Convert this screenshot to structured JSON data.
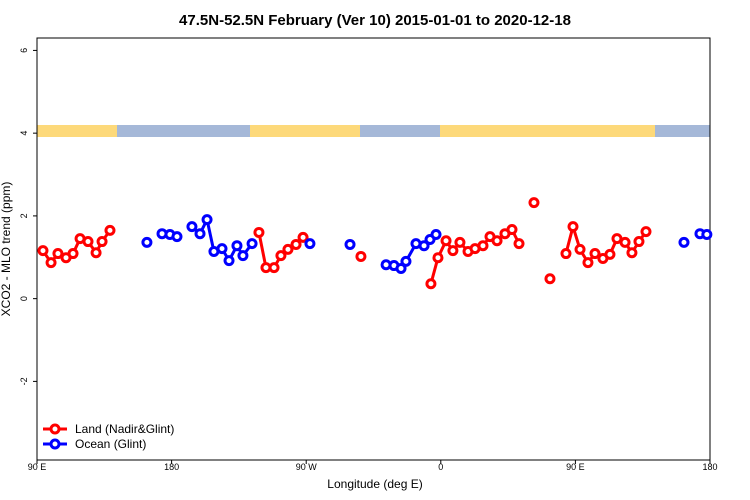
{
  "chart_data": {
    "type": "line",
    "title": "47.5N-52.5N February (Ver 10)   2015-01-01 to 2020-12-18",
    "x_label": "Longitude (deg E)",
    "y_label": "XCO2 - MLO trend (ppm)",
    "xlim": [
      90,
      540
    ],
    "xticks": [
      {
        "value": 90,
        "label": "90 E"
      },
      {
        "value": 180,
        "label": "180"
      },
      {
        "value": 270,
        "label": "90 W"
      },
      {
        "value": 360,
        "label": "0"
      },
      {
        "value": 450,
        "label": "90 E"
      },
      {
        "value": 540,
        "label": "180"
      }
    ],
    "ylim": [
      -3.9,
      6.3
    ],
    "yticks": [
      -2,
      0,
      2,
      4,
      6
    ],
    "legend": "bottom-left",
    "series": [
      {
        "name": "Land (Nadir&Glint)",
        "color": "#ff0000",
        "x": [
          94.0,
          99.4,
          104.0,
          109.4,
          114.1,
          118.8,
          124.1,
          129.5,
          133.5,
          138.8,
          null,
          238.4,
          243.1,
          248.5,
          253.1,
          257.8,
          263.2,
          267.9,
          null,
          306.6,
          null,
          353.4,
          358.1,
          363.5,
          368.1,
          372.8,
          378.2,
          382.9,
          388.2,
          392.9,
          397.6,
          402.9,
          407.6,
          412.3,
          null,
          422.3,
          null,
          433.0,
          null,
          443.7,
          448.4,
          453.1,
          458.4,
          463.1,
          468.4,
          473.1,
          477.8,
          483.2,
          487.8,
          492.5,
          497.2
        ],
        "values": [
          1.16,
          0.87,
          1.09,
          0.99,
          1.09,
          1.45,
          1.38,
          1.11,
          1.38,
          1.65,
          null,
          1.6,
          0.75,
          0.75,
          1.04,
          1.19,
          1.31,
          1.48,
          null,
          1.02,
          null,
          0.36,
          0.99,
          1.4,
          1.16,
          1.36,
          1.14,
          1.21,
          1.28,
          1.5,
          1.4,
          1.57,
          1.67,
          1.33,
          null,
          2.32,
          null,
          0.48,
          null,
          1.09,
          1.74,
          1.19,
          0.87,
          1.09,
          0.97,
          1.07,
          1.45,
          1.36,
          1.11,
          1.38,
          1.62
        ]
      },
      {
        "name": "Ocean (Glint)",
        "color": "#0000ff",
        "x": [
          163.5,
          null,
          173.6,
          178.9,
          183.6,
          null,
          193.6,
          199.0,
          203.7,
          208.3,
          213.7,
          218.4,
          223.7,
          227.7,
          233.8,
          null,
          272.5,
          null,
          299.3,
          null,
          323.4,
          328.7,
          333.4,
          336.7,
          343.4,
          348.8,
          352.8,
          356.8,
          null,
          522.6,
          null,
          533.3,
          537.9
        ],
        "values": [
          1.36,
          null,
          1.57,
          1.55,
          1.5,
          null,
          1.74,
          1.57,
          1.91,
          1.14,
          1.21,
          0.92,
          1.28,
          1.04,
          1.33,
          null,
          1.33,
          null,
          1.31,
          null,
          0.82,
          0.8,
          0.73,
          0.9,
          1.33,
          1.28,
          1.43,
          1.55,
          null,
          1.36,
          null,
          1.57,
          1.55
        ]
      }
    ]
  }
}
